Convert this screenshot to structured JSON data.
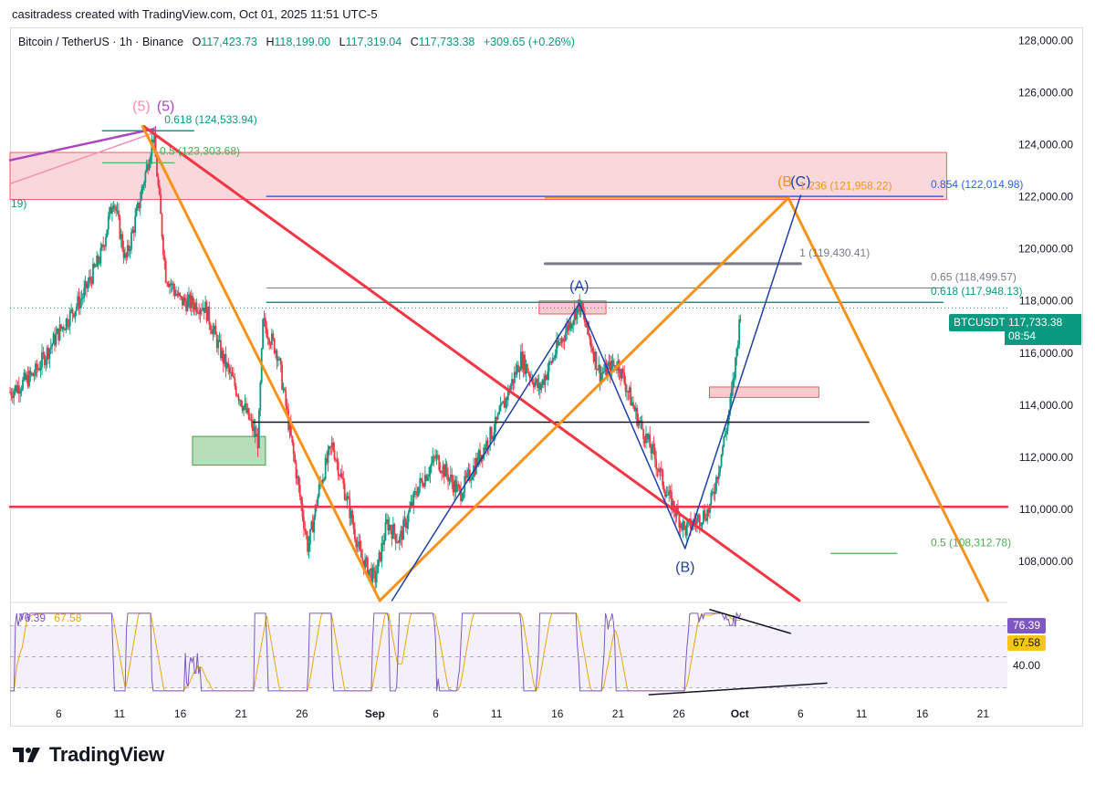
{
  "credit": "casitradess created with TradingView.com, Oct 01, 2025 11:51 UTC-5",
  "header": {
    "symbol": "Bitcoin / TetherUS · 1h · Binance",
    "o_label": "O",
    "o_value": "117,423.73",
    "h_label": "H",
    "h_value": "118,199.00",
    "l_label": "L",
    "l_value": "117,319.04",
    "c_label": "C",
    "c_value": "117,733.38",
    "change": "+309.65 (+0.26%)"
  },
  "price_tag": {
    "symbol": "BTCUSDT",
    "price": "117,733.38",
    "countdown": "08:54"
  },
  "rsi_legend": {
    "rsi": "76.39",
    "ma": "67.58"
  },
  "rsi_tags": {
    "rsi": "76.39",
    "ma": "67.58",
    "level": "40.00"
  },
  "brand": {
    "name": "TradingView"
  },
  "colors": {
    "up": "#089981",
    "down": "#f23645",
    "orange": "#f7931a",
    "red_line": "#f23645",
    "blue_line": "#1e3fa8",
    "zone_red": "#f8c9cf",
    "zone_green": "#a5d6a7",
    "rsi": "#7e57c2",
    "rsi_ma": "#e8a515"
  },
  "chart_data": {
    "type": "candlestick",
    "symbol": "BTCUSDT",
    "timeframe": "1h",
    "ylim": [
      106500,
      128500
    ],
    "y_ticks": [
      "128,000.00",
      "126,000.00",
      "124,000.00",
      "122,000.00",
      "120,000.00",
      "118,000.00",
      "116,000.00",
      "114,000.00",
      "112,000.00",
      "110,000.00",
      "108,000.00"
    ],
    "y_tick_values": [
      128000,
      126000,
      124000,
      122000,
      120000,
      118000,
      116000,
      114000,
      112000,
      110000,
      108000
    ],
    "x_ticks": [
      "6",
      "11",
      "16",
      "21",
      "26",
      "Sep",
      "6",
      "11",
      "16",
      "21",
      "26",
      "Oct",
      "6",
      "11",
      "16",
      "21"
    ],
    "x_tick_days": [
      6,
      11,
      16,
      21,
      26,
      32,
      37,
      42,
      47,
      52,
      57,
      62,
      67,
      72,
      77,
      82
    ],
    "x_days_start": 2,
    "x_days_end": 84,
    "price_path": [
      [
        2,
        114500
      ],
      [
        4,
        115200
      ],
      [
        6,
        116800
      ],
      [
        8,
        118200
      ],
      [
        9.5,
        119800
      ],
      [
        10.5,
        122000
      ],
      [
        11.5,
        119500
      ],
      [
        12.5,
        121500
      ],
      [
        13.8,
        124400
      ],
      [
        14.8,
        119000
      ],
      [
        16,
        118000
      ],
      [
        18,
        117800
      ],
      [
        19.5,
        115800
      ],
      [
        21,
        114200
      ],
      [
        22.4,
        112600
      ],
      [
        22.8,
        117200
      ],
      [
        24,
        116000
      ],
      [
        25.5,
        111500
      ],
      [
        26.5,
        108500
      ],
      [
        27.5,
        111000
      ],
      [
        28.5,
        112500
      ],
      [
        29.8,
        110200
      ],
      [
        30.8,
        108200
      ],
      [
        32,
        107300
      ],
      [
        33,
        109500
      ],
      [
        34,
        108800
      ],
      [
        35.5,
        110800
      ],
      [
        37,
        112000
      ],
      [
        39,
        110600
      ],
      [
        40,
        111500
      ],
      [
        42,
        113300
      ],
      [
        44,
        115800
      ],
      [
        45.5,
        114600
      ],
      [
        47,
        116200
      ],
      [
        48.8,
        117900
      ],
      [
        50.5,
        115200
      ],
      [
        52,
        115600
      ],
      [
        53.5,
        113600
      ],
      [
        55,
        112000
      ],
      [
        56,
        110600
      ],
      [
        57.5,
        109200
      ],
      [
        58.5,
        109600
      ],
      [
        59.5,
        110000
      ],
      [
        60.3,
        111700
      ],
      [
        61,
        113400
      ],
      [
        61.5,
        115000
      ],
      [
        62.1,
        117800
      ]
    ],
    "annotations": [
      {
        "text": "0.618 (124,533.94)",
        "color": "#089981",
        "price": 124533.94
      },
      {
        "text": "0.5 (123,303.68)",
        "color": "#4caf50",
        "price": 123303.68
      },
      {
        "text": "1.236 (121,958.22)",
        "color": "#f7931a",
        "price": 121958.22
      },
      {
        "text": "0.854 (122,014.98)",
        "color": "#2962ff",
        "price": 122014.98
      },
      {
        "text": "1 (119,430.41)",
        "color": "#787b86",
        "price": 119430.41
      },
      {
        "text": "0.65 (118,499.57)",
        "color": "#787b86",
        "price": 118499.57
      },
      {
        "text": "0.618 (117,948.13)",
        "color": "#089981",
        "price": 117948.13
      },
      {
        "text": "0.5 (108,312.78)",
        "color": "#4caf50",
        "price": 108312.78
      }
    ],
    "wave_labels": [
      {
        "text": "(5)",
        "color": "#f48fb1",
        "day": 12.8,
        "price": 125300
      },
      {
        "text": "(5)",
        "color": "#ab47bc",
        "day": 14.8,
        "price": 125300
      },
      {
        "text": "(A)",
        "color": "#1e3fa8",
        "day": 48.8,
        "price": 118400
      },
      {
        "text": "(B)",
        "color": "#1e3fa8",
        "day": 57.5,
        "price": 107600
      },
      {
        "text": "(B",
        "color": "#f7931a",
        "day": 65.7,
        "price": 122400
      },
      {
        "text": "(C)",
        "color": "#1e3fa8",
        "day": 67,
        "price": 122400
      }
    ],
    "left_edge_label": "19)",
    "rsi": {
      "current": 76.39,
      "ma": 67.58,
      "level": 40,
      "ylim": [
        25,
        85
      ]
    }
  }
}
